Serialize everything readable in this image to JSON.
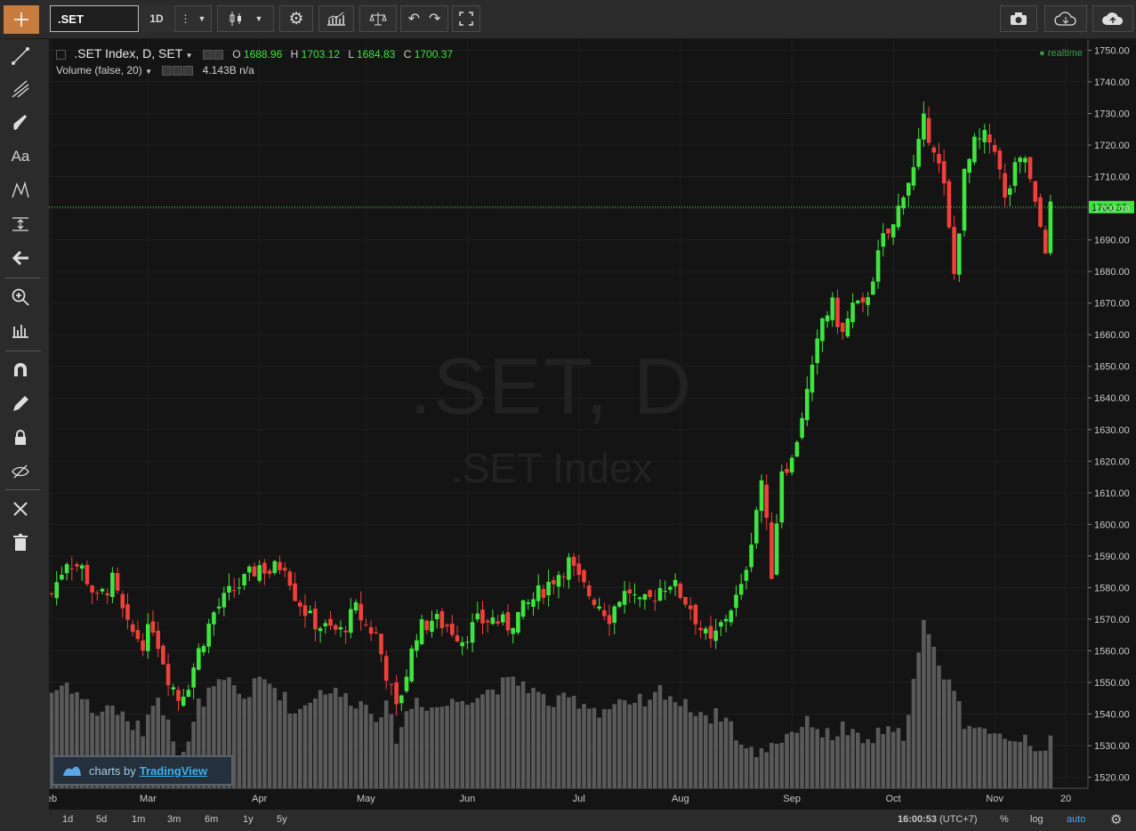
{
  "toolbar": {
    "symbol": ".SET",
    "interval": "1D"
  },
  "legend": {
    "title": ".SET Index, D, SET",
    "o_label": "O",
    "o": "1688.96",
    "h_label": "H",
    "h": "1703.12",
    "l_label": "L",
    "l": "1684.83",
    "c_label": "C",
    "c": "1700.37",
    "volume_title": "Volume (false, 20)",
    "volume_value": "4.143B",
    "volume_na": "n/a",
    "realtime": "realtime"
  },
  "watermark": {
    "line1": ".SET, D",
    "line2": ".SET Index"
  },
  "badge": {
    "prefix": "charts by",
    "brand": "TradingView"
  },
  "bottom": {
    "ranges": [
      "1d",
      "5d",
      "1m",
      "3m",
      "6m",
      "1y",
      "5y"
    ],
    "time": "16:00:53",
    "tz": "(UTC+7)",
    "pct": "%",
    "log": "log",
    "auto": "auto"
  },
  "colors": {
    "up": "#3fe53f",
    "down": "#f0403a",
    "volume": "#5a5a5a",
    "last_price": "#3fe53f"
  },
  "chart_data": {
    "type": "candlestick",
    "title": ".SET Index, D, SET",
    "y_ticks": [
      1520,
      1530,
      1540,
      1550,
      1560,
      1570,
      1580,
      1590,
      1600,
      1610,
      1620,
      1630,
      1640,
      1650,
      1660,
      1670,
      1680,
      1690,
      1700,
      1710,
      1720,
      1730,
      1740,
      1750
    ],
    "ylim": [
      1516.5,
      1753.5
    ],
    "x_labels": [
      {
        "label": "eb",
        "i": 0
      },
      {
        "label": "Mar",
        "i": 19
      },
      {
        "label": "Apr",
        "i": 41
      },
      {
        "label": "May",
        "i": 62
      },
      {
        "label": "Jun",
        "i": 82
      },
      {
        "label": "Jul",
        "i": 104
      },
      {
        "label": "Aug",
        "i": 124
      },
      {
        "label": "Sep",
        "i": 146
      },
      {
        "label": "Oct",
        "i": 166
      },
      {
        "label": "Nov",
        "i": 186
      },
      {
        "label": "20",
        "i": 200
      }
    ],
    "last_price": 1700.37,
    "last_price_label": "1700.37",
    "anchors": [
      [
        0,
        1578,
        1547
      ],
      [
        3,
        1589,
        1550
      ],
      [
        6,
        1586,
        1545
      ],
      [
        9,
        1576,
        1540
      ],
      [
        12,
        1582,
        1543
      ],
      [
        15,
        1567,
        1537
      ],
      [
        18,
        1563,
        1535
      ],
      [
        20,
        1568,
        1545
      ],
      [
        23,
        1552,
        1540
      ],
      [
        25,
        1545,
        1527
      ],
      [
        27,
        1550,
        1530
      ],
      [
        29,
        1560,
        1543
      ],
      [
        32,
        1572,
        1548
      ],
      [
        35,
        1578,
        1550
      ],
      [
        38,
        1582,
        1545
      ],
      [
        41,
        1587,
        1551
      ],
      [
        43,
        1585,
        1550
      ],
      [
        46,
        1588,
        1545
      ],
      [
        48,
        1578,
        1540
      ],
      [
        51,
        1570,
        1545
      ],
      [
        54,
        1567,
        1548
      ],
      [
        57,
        1566,
        1546
      ],
      [
        60,
        1573,
        1544
      ],
      [
        62,
        1568,
        1543
      ],
      [
        64,
        1565,
        1540
      ],
      [
        66,
        1553,
        1542
      ],
      [
        68,
        1541,
        1533
      ],
      [
        70,
        1553,
        1540
      ],
      [
        72,
        1566,
        1545
      ],
      [
        75,
        1570,
        1542
      ],
      [
        78,
        1568,
        1543
      ],
      [
        81,
        1564,
        1545
      ],
      [
        84,
        1569,
        1546
      ],
      [
        87,
        1570,
        1548
      ],
      [
        90,
        1568,
        1550
      ],
      [
        93,
        1573,
        1550
      ],
      [
        96,
        1578,
        1546
      ],
      [
        99,
        1583,
        1543
      ],
      [
        102,
        1588,
        1545
      ],
      [
        104,
        1582,
        1544
      ],
      [
        106,
        1578,
        1543
      ],
      [
        108,
        1575,
        1541
      ],
      [
        110,
        1571,
        1542
      ],
      [
        112,
        1577,
        1544
      ],
      [
        114,
        1579,
        1541
      ],
      [
        116,
        1574,
        1544
      ],
      [
        118,
        1576,
        1543
      ],
      [
        120,
        1580,
        1548
      ],
      [
        122,
        1582,
        1546
      ],
      [
        124,
        1578,
        1543
      ],
      [
        126,
        1574,
        1542
      ],
      [
        128,
        1567,
        1541
      ],
      [
        130,
        1562,
        1539
      ],
      [
        132,
        1568,
        1540
      ],
      [
        134,
        1574,
        1537
      ],
      [
        136,
        1579,
        1530
      ],
      [
        138,
        1596,
        1528
      ],
      [
        140,
        1614,
        1528
      ],
      [
        142,
        1585,
        1531
      ],
      [
        144,
        1618,
        1532
      ],
      [
        146,
        1620,
        1535
      ],
      [
        148,
        1635,
        1536
      ],
      [
        150,
        1648,
        1538
      ],
      [
        152,
        1665,
        1534
      ],
      [
        154,
        1669,
        1533
      ],
      [
        156,
        1660,
        1536
      ],
      [
        158,
        1669,
        1533
      ],
      [
        160,
        1668,
        1531
      ],
      [
        162,
        1679,
        1532
      ],
      [
        164,
        1690,
        1535
      ],
      [
        166,
        1694,
        1533
      ],
      [
        168,
        1706,
        1534
      ],
      [
        170,
        1712,
        1550
      ],
      [
        172,
        1727,
        1568
      ],
      [
        174,
        1720,
        1560
      ],
      [
        176,
        1706,
        1553
      ],
      [
        178,
        1679,
        1548
      ],
      [
        180,
        1710,
        1537
      ],
      [
        182,
        1720,
        1538
      ],
      [
        184,
        1722,
        1533
      ],
      [
        186,
        1720,
        1532
      ],
      [
        188,
        1702,
        1534
      ],
      [
        190,
        1712,
        1532
      ],
      [
        192,
        1716,
        1533
      ],
      [
        194,
        1700,
        1530
      ],
      [
        196,
        1688,
        1530
      ],
      [
        197,
        1700,
        1531
      ]
    ],
    "anchor_format": [
      "index",
      "close",
      "volume_bar_top_price"
    ],
    "candles_count": 198
  }
}
